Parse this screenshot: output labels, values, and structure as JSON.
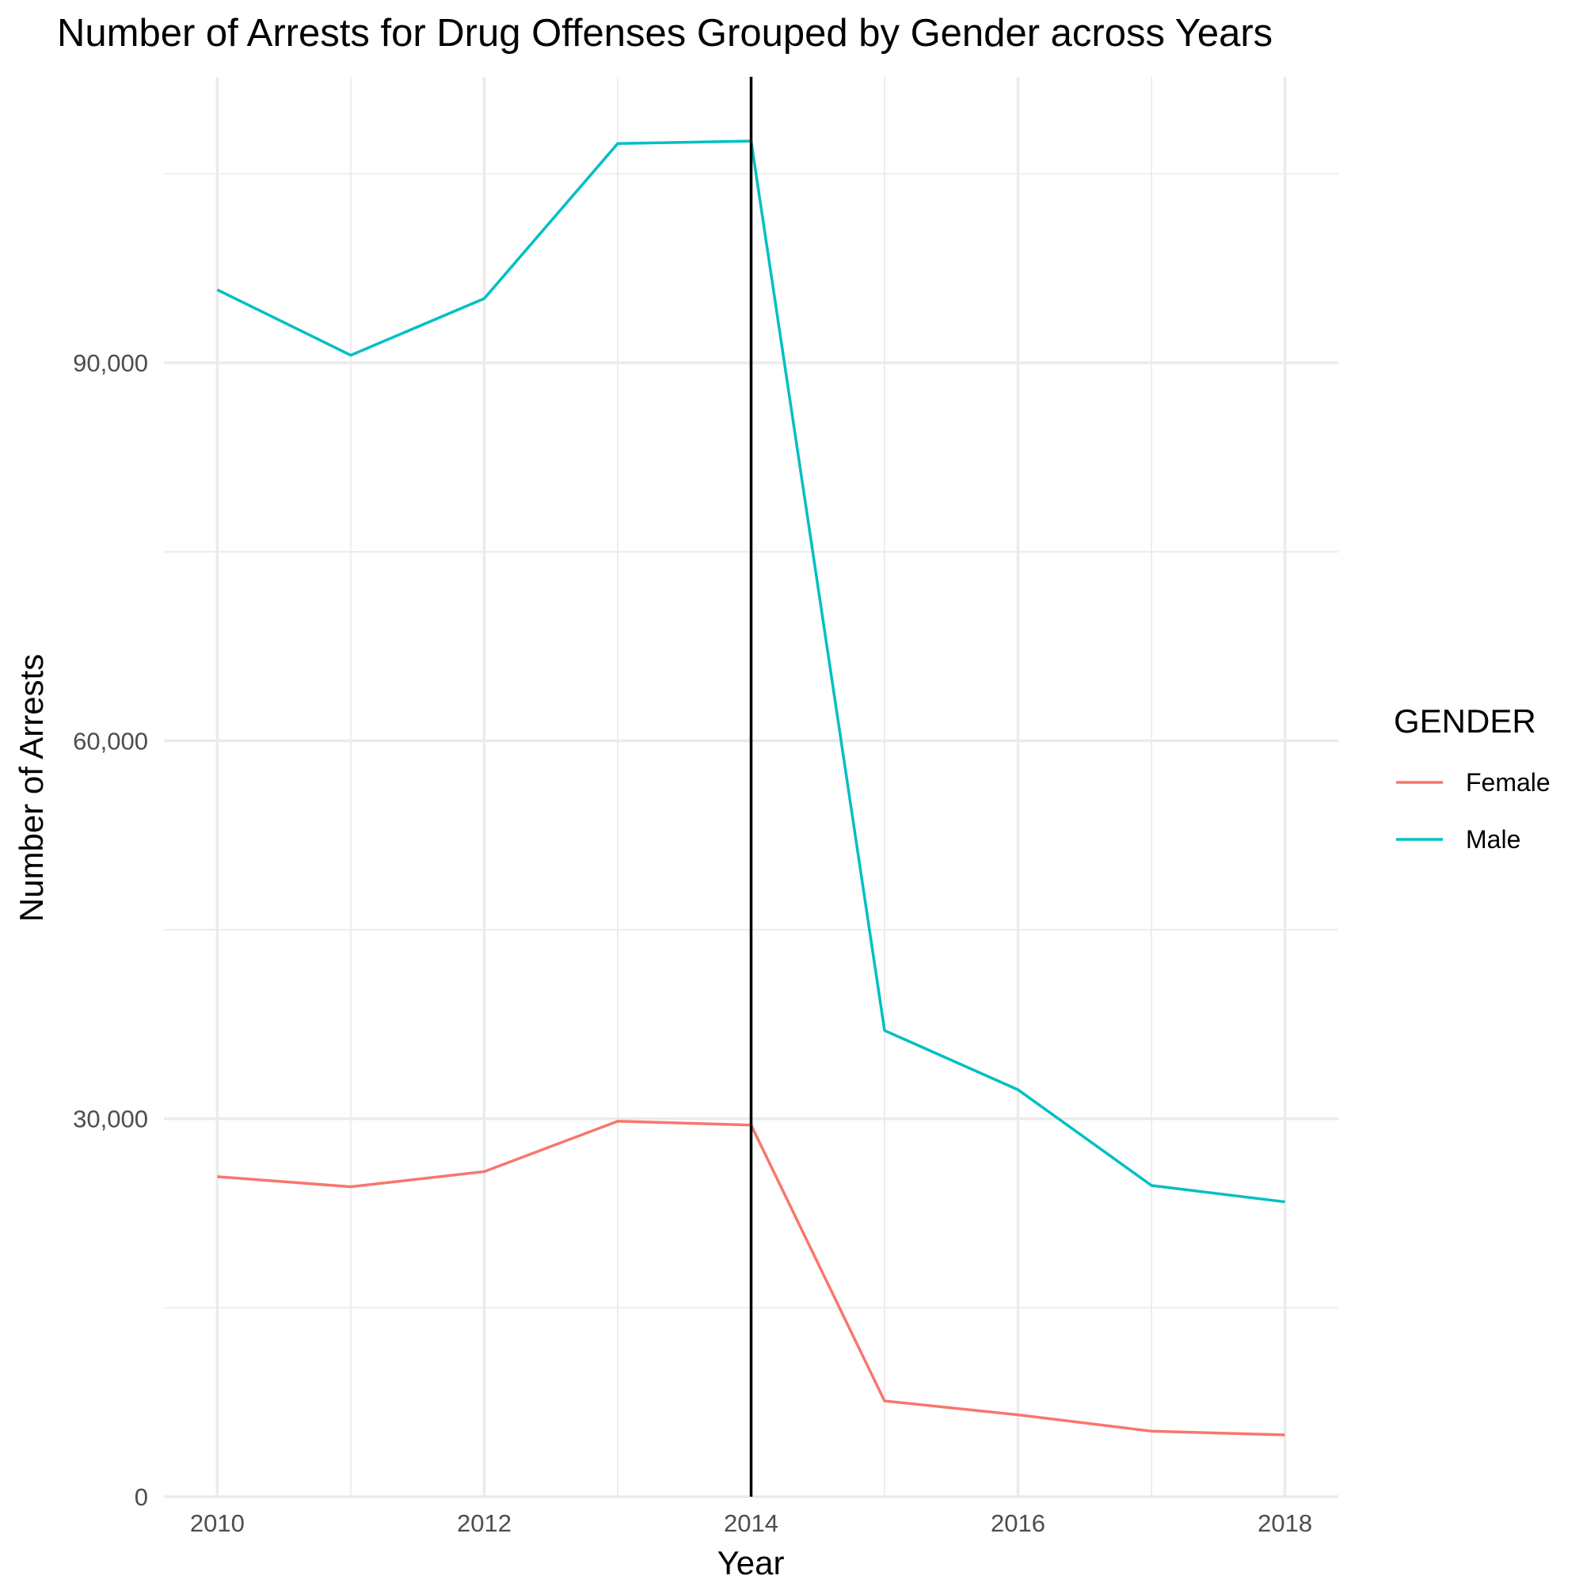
{
  "chart_data": {
    "type": "line",
    "title": "Number of Arrests for Drug Offenses Grouped by Gender across Years",
    "xlabel": "Year",
    "ylabel": "Number of Arrests",
    "x": [
      2010,
      2011,
      2012,
      2013,
      2014,
      2015,
      2016,
      2017,
      2018
    ],
    "x_ticks": [
      2010,
      2012,
      2014,
      2016,
      2018
    ],
    "x_tick_labels": [
      "2010",
      "2012",
      "2014",
      "2016",
      "2018"
    ],
    "xlim": [
      2009.6,
      2018.4
    ],
    "y_ticks": [
      0,
      30000,
      60000,
      90000
    ],
    "y_tick_labels": [
      "0",
      "30,000",
      "60,000",
      "90,000"
    ],
    "ylim": [
      0,
      112700
    ],
    "grid": true,
    "reference_line": {
      "x": 2014,
      "color": "#000000"
    },
    "legend": {
      "title": "GENDER",
      "position": "right"
    },
    "series": [
      {
        "name": "Female",
        "color": "#F8766D",
        "values": [
          25400,
          24600,
          25800,
          29800,
          29500,
          7600,
          6500,
          5200,
          4900
        ]
      },
      {
        "name": "Male",
        "color": "#00BFC4",
        "values": [
          95800,
          90600,
          95100,
          107400,
          107600,
          37000,
          32300,
          24700,
          23400
        ]
      }
    ]
  }
}
